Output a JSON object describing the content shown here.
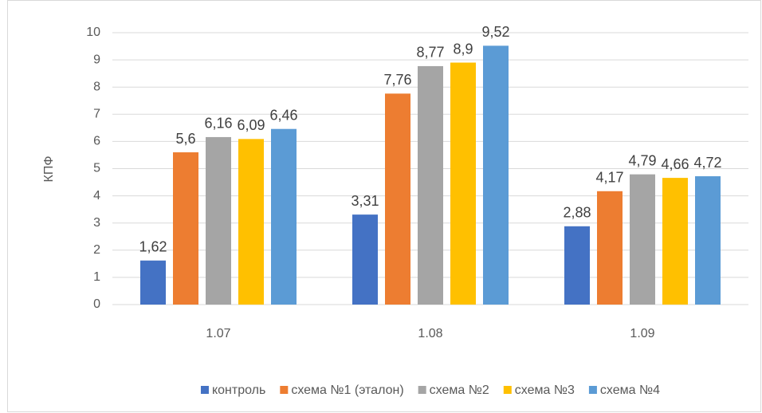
{
  "chart_data": {
    "type": "bar",
    "y_label": "КПФ",
    "categories": [
      "1.07",
      "1.08",
      "1.09"
    ],
    "series": [
      {
        "name": "контроль",
        "color": "#4472c4",
        "values": [
          1.62,
          3.31,
          2.88
        ],
        "value_labels": [
          "1,62",
          "3,31",
          "2,88"
        ]
      },
      {
        "name": "схема №1 (эталон)",
        "color": "#ed7d31",
        "values": [
          5.6,
          7.76,
          4.17
        ],
        "value_labels": [
          "5,6",
          "7,76",
          "4,17"
        ]
      },
      {
        "name": "схема №2",
        "color": "#a5a5a5",
        "values": [
          6.16,
          8.77,
          4.79
        ],
        "value_labels": [
          "6,16",
          "8,77",
          "4,79"
        ]
      },
      {
        "name": "схема №3",
        "color": "#ffc000",
        "values": [
          6.09,
          8.9,
          4.66
        ],
        "value_labels": [
          "6,09",
          "8,9",
          "4,66"
        ]
      },
      {
        "name": "схема №4",
        "color": "#5b9bd5",
        "values": [
          6.46,
          9.52,
          4.72
        ],
        "value_labels": [
          "6,46",
          "9,52",
          "4,72"
        ]
      }
    ],
    "ylim": [
      0,
      10
    ],
    "yticks": [
      0,
      1,
      2,
      3,
      4,
      5,
      6,
      7,
      8,
      9,
      10
    ],
    "grid": true,
    "legend": "bottom"
  }
}
